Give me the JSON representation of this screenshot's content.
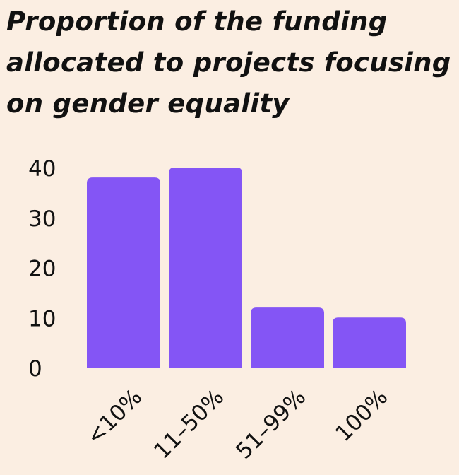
{
  "chart_data": {
    "type": "bar",
    "title": "Proportion of the funding allocated to projects focusing on gender equality",
    "categories": [
      "<10%",
      "11–50%",
      "51–99%",
      "100%"
    ],
    "values": [
      38,
      40,
      12,
      10
    ],
    "xlabel": "",
    "ylabel": "",
    "ylim": [
      0,
      40
    ],
    "yticks": [
      0,
      10,
      20,
      30,
      40
    ],
    "grid": false,
    "bar_color": "#8455F5",
    "background": "#FBEEE2"
  }
}
